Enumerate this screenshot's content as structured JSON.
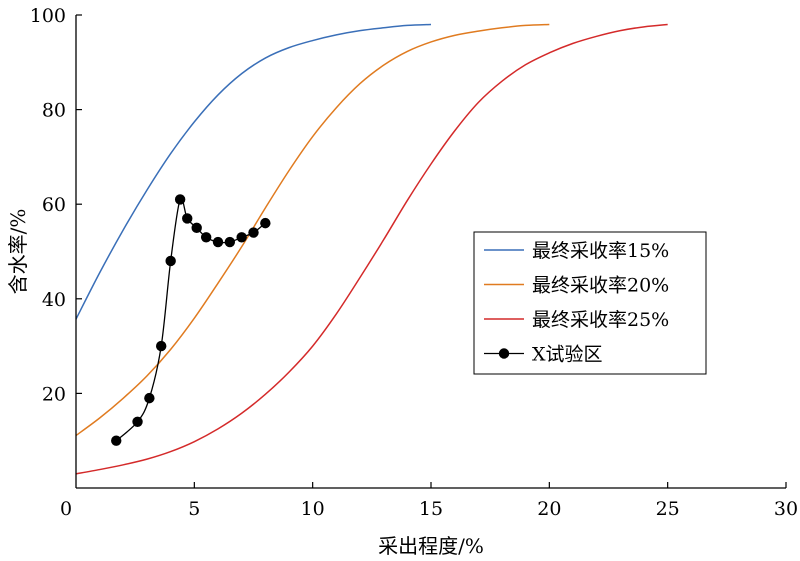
{
  "chart_data": {
    "type": "line",
    "title": "",
    "xlabel": "采出程度/%",
    "ylabel": "含水率/%",
    "xlim": [
      0,
      30
    ],
    "ylim": [
      0,
      100
    ],
    "xticks": [
      0,
      5,
      10,
      15,
      20,
      25,
      30
    ],
    "yticks": [
      20,
      40,
      60,
      80,
      100
    ],
    "grid": false,
    "legend_position": "right",
    "series": [
      {
        "name": "最终采收率15%",
        "color": "#3a6fb8",
        "style": "line",
        "x": [
          0,
          1,
          2,
          3,
          4,
          5,
          6,
          7,
          8,
          9,
          10,
          11,
          12,
          13,
          14,
          15
        ],
        "y": [
          35.7,
          45.5,
          54.6,
          63.0,
          70.7,
          77.4,
          83.1,
          87.6,
          90.9,
          93.1,
          94.6,
          95.8,
          96.7,
          97.3,
          97.8,
          98.0
        ]
      },
      {
        "name": "最终采收率20%",
        "color": "#e07b20",
        "style": "line",
        "x": [
          0,
          1,
          2,
          3,
          4,
          5,
          6,
          7,
          8,
          9,
          10,
          11,
          12,
          13,
          14,
          15,
          16,
          17,
          18,
          19,
          20
        ],
        "y": [
          11.1,
          14.8,
          19.0,
          23.7,
          29.3,
          35.9,
          43.3,
          51.0,
          59.2,
          67.1,
          74.3,
          80.4,
          85.5,
          89.4,
          92.3,
          94.3,
          95.7,
          96.6,
          97.3,
          97.8,
          98.0
        ]
      },
      {
        "name": "最终采收率25%",
        "color": "#d42a2a",
        "style": "line",
        "x": [
          0,
          1,
          2,
          3,
          4,
          5,
          6,
          7,
          8,
          9,
          10,
          11,
          12,
          13,
          14,
          15,
          16,
          17,
          18,
          19,
          20,
          21,
          22,
          23,
          24,
          25
        ],
        "y": [
          3.0,
          3.9,
          4.9,
          6.1,
          7.7,
          9.8,
          12.5,
          15.8,
          19.8,
          24.5,
          30.0,
          36.8,
          44.5,
          52.5,
          60.8,
          68.5,
          75.5,
          81.5,
          86.0,
          89.5,
          92.0,
          94.0,
          95.5,
          96.7,
          97.5,
          98.0
        ]
      },
      {
        "name": "X试验区",
        "color": "#000000",
        "style": "line-marker",
        "x": [
          1.7,
          2.6,
          3.1,
          3.6,
          4.0,
          4.4,
          4.7,
          5.1,
          5.5,
          6.0,
          6.5,
          7.0,
          7.5,
          8.0
        ],
        "y": [
          10,
          14,
          19,
          30,
          48,
          61,
          57,
          55,
          53,
          52,
          52,
          53,
          54,
          56
        ]
      }
    ]
  }
}
